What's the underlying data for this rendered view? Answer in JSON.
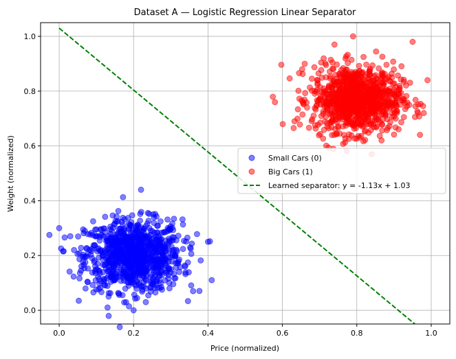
{
  "chart_data": {
    "type": "scatter",
    "title": "Dataset A — Logistic Regression Linear Separator",
    "xlabel": "Price (normalized)",
    "ylabel": "Weight (normalized)",
    "xlim": [
      -0.05,
      1.05
    ],
    "ylim": [
      -0.05,
      1.05
    ],
    "xticks": [
      "0.0",
      "0.2",
      "0.4",
      "0.6",
      "0.8",
      "1.0"
    ],
    "yticks": [
      "0.0",
      "0.2",
      "0.4",
      "0.6",
      "0.8",
      "1.0"
    ],
    "grid": true,
    "legend_position": "center-right",
    "series": [
      {
        "name": "Small Cars (0)",
        "color": "#0000ff",
        "cluster_center": [
          0.2,
          0.2
        ],
        "cluster_spread": 0.065,
        "approx_point_count": 1000,
        "sample_points": [
          [
            0.0,
            0.3
          ],
          [
            0.41,
            0.11
          ],
          [
            0.22,
            0.44
          ],
          [
            0.4,
            0.25
          ],
          [
            0.04,
            0.22
          ],
          [
            0.36,
            0.07
          ],
          [
            0.2,
            0.0
          ],
          [
            0.13,
            0.01
          ]
        ]
      },
      {
        "name": "Big Cars (1)",
        "color": "#ff0000",
        "cluster_center": [
          0.8,
          0.77
        ],
        "cluster_spread": 0.06,
        "approx_point_count": 1000,
        "sample_points": [
          [
            0.58,
            0.76
          ],
          [
            0.79,
            1.0
          ],
          [
            0.99,
            0.84
          ],
          [
            0.84,
            0.57
          ],
          [
            0.95,
            0.98
          ],
          [
            0.74,
            0.97
          ],
          [
            0.66,
            0.9
          ],
          [
            0.98,
            0.72
          ]
        ]
      }
    ],
    "separator": {
      "name": "Learned separator: y = -1.13x + 1.03",
      "slope": -1.13,
      "intercept": 1.03,
      "color": "#008000",
      "style": "dashed"
    }
  }
}
